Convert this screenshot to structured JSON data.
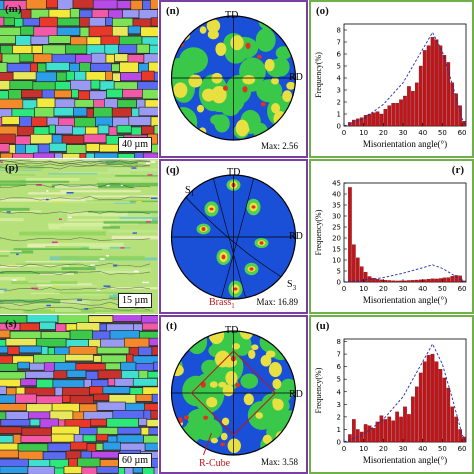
{
  "rows": [
    {
      "micro": {
        "label": "(m)",
        "scale": "40 µm"
      },
      "pole": {
        "label": "(n)",
        "td": "TD",
        "rd": "RD",
        "max": "Max: 2.56"
      },
      "hist": {
        "label": "(o)"
      }
    },
    {
      "micro": {
        "label": "(p)",
        "scale": "15 µm"
      },
      "pole": {
        "label": "(q)",
        "td": "TD",
        "rd": "RD",
        "max": "Max: 16.89",
        "s1": "S",
        "s1sub": "1",
        "s3": "S",
        "s3sub": "3",
        "brass": "Brass",
        "brasssub": "1"
      },
      "hist": {
        "label": "(r)"
      }
    },
    {
      "micro": {
        "label": "(s)",
        "scale": "60 µm"
      },
      "pole": {
        "label": "(t)",
        "td": "TD",
        "rd": "RD",
        "max": "Max: 3.58",
        "rcube": "R-Cube"
      },
      "hist": {
        "label": "(u)"
      }
    }
  ],
  "axis": {
    "ylabel": "Frequency(%)",
    "xlabel": "Misorientation angle(°)"
  },
  "colors": {
    "purple_frame": "#7a3fa0",
    "green_frame": "#6fb04a",
    "bar": "#c0161b",
    "dashed": "#1a2fb0"
  },
  "chart_data": [
    {
      "type": "bar",
      "panel": "(o)",
      "xlabel": "Misorientation angle(°)",
      "ylabel": "Frequency(%)",
      "xlim": [
        0,
        62
      ],
      "ylim": [
        0,
        8.5
      ],
      "xticks": [
        0,
        10,
        20,
        30,
        40,
        50,
        60
      ],
      "yticks": [
        0,
        1,
        2,
        3,
        4,
        5,
        6,
        7,
        8
      ],
      "x": [
        3,
        5,
        7,
        9,
        11,
        13,
        15,
        17,
        19,
        21,
        23,
        25,
        27,
        29,
        31,
        33,
        35,
        37,
        39,
        41,
        43,
        45,
        47,
        49,
        51,
        53,
        55,
        57,
        59,
        61
      ],
      "values": [
        0.3,
        0.5,
        0.6,
        0.7,
        0.9,
        1.0,
        1.1,
        1.2,
        1.0,
        1.4,
        1.7,
        1.9,
        1.9,
        2.2,
        2.5,
        3.3,
        2.9,
        3.6,
        5.0,
        6.3,
        6.7,
        7.4,
        7.2,
        6.7,
        5.9,
        5.3,
        3.6,
        2.7,
        1.7,
        0.4
      ],
      "dashed_curve": [
        [
          0,
          0
        ],
        [
          10,
          0.6
        ],
        [
          20,
          1.8
        ],
        [
          30,
          3.6
        ],
        [
          40,
          6.4
        ],
        [
          45,
          7.8
        ],
        [
          50,
          6.2
        ],
        [
          55,
          3.5
        ],
        [
          60,
          0.6
        ],
        [
          62,
          0
        ]
      ]
    },
    {
      "type": "bar",
      "panel": "(r)",
      "xlabel": "Misorientation angle(°)",
      "ylabel": "Frequency(%)",
      "xlim": [
        0,
        62
      ],
      "ylim": [
        0,
        45
      ],
      "xticks": [
        0,
        10,
        20,
        30,
        40,
        50,
        60
      ],
      "yticks": [
        0,
        5,
        10,
        15,
        20,
        25,
        30,
        35,
        40,
        45
      ],
      "x": [
        3,
        5,
        7,
        9,
        11,
        13,
        15,
        17,
        19,
        21,
        23,
        25,
        27,
        29,
        31,
        33,
        35,
        37,
        39,
        41,
        43,
        45,
        47,
        49,
        51,
        53,
        55,
        57,
        59,
        61
      ],
      "values": [
        43,
        17,
        11,
        7,
        4.5,
        2.5,
        1.7,
        1.3,
        1.0,
        0.8,
        0.7,
        0.6,
        0.5,
        0.6,
        0.6,
        0.7,
        0.8,
        0.9,
        1.0,
        1.1,
        1.3,
        1.5,
        1.4,
        1.6,
        1.9,
        2.0,
        2.6,
        3.0,
        2.8,
        0.5
      ],
      "dashed_curve": [
        [
          0,
          0
        ],
        [
          10,
          0.8
        ],
        [
          20,
          2.0
        ],
        [
          30,
          4.0
        ],
        [
          40,
          6.5
        ],
        [
          45,
          7.8
        ],
        [
          50,
          6.2
        ],
        [
          55,
          3.5
        ],
        [
          60,
          0.6
        ],
        [
          62,
          0
        ]
      ]
    },
    {
      "type": "bar",
      "panel": "(u)",
      "xlabel": "Misorientation angle(°)",
      "ylabel": "Frequency(%)",
      "xlim": [
        0,
        62
      ],
      "ylim": [
        0,
        8.2
      ],
      "xticks": [
        0,
        10,
        20,
        30,
        40,
        50,
        60
      ],
      "yticks": [
        0,
        1,
        2,
        3,
        4,
        5,
        6,
        7,
        8
      ],
      "x": [
        3,
        5,
        7,
        9,
        11,
        13,
        15,
        17,
        19,
        21,
        23,
        25,
        27,
        29,
        31,
        33,
        35,
        37,
        39,
        41,
        43,
        45,
        47,
        49,
        51,
        53,
        55,
        57,
        59,
        61
      ],
      "values": [
        0.6,
        1.8,
        1.0,
        0.8,
        1.4,
        1.3,
        1.1,
        1.6,
        2.1,
        1.8,
        2.0,
        1.7,
        2.4,
        2.0,
        2.8,
        2.2,
        3.6,
        4.4,
        5.5,
        6.4,
        6.9,
        7.0,
        6.4,
        5.8,
        5.1,
        4.3,
        2.8,
        2.0,
        1.0,
        0.4
      ],
      "dashed_curve": [
        [
          0,
          0
        ],
        [
          10,
          0.6
        ],
        [
          20,
          1.8
        ],
        [
          30,
          3.6
        ],
        [
          40,
          6.4
        ],
        [
          45,
          7.8
        ],
        [
          50,
          6.2
        ],
        [
          55,
          3.5
        ],
        [
          60,
          0.6
        ],
        [
          62,
          0
        ]
      ]
    }
  ]
}
